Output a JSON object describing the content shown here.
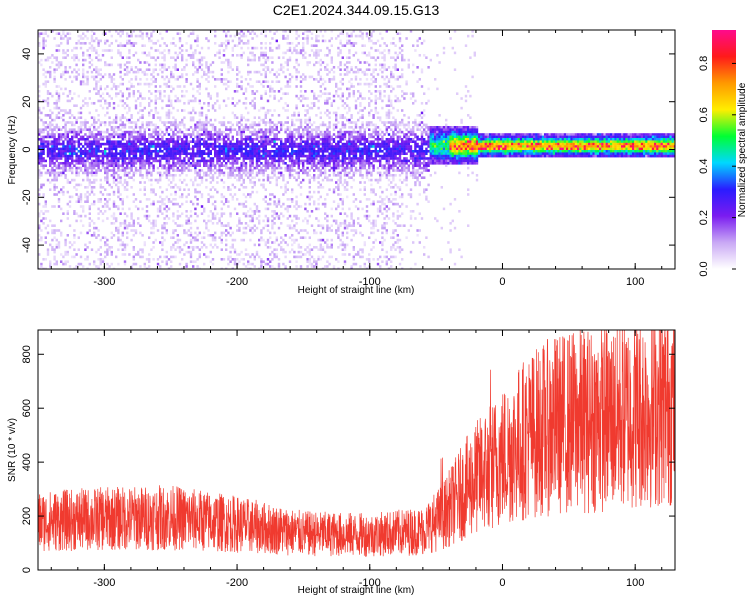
{
  "title": "C2E1.2024.344.09.15.G13",
  "colors": {
    "snr_line": "#f03a2f",
    "colormap": [
      "#ffffff",
      "#c9a8f5",
      "#7a1cf0",
      "#2a1cff",
      "#00d8ff",
      "#00ff33",
      "#ffee00",
      "#ff9900",
      "#ff1a1a",
      "#ff0a8c"
    ]
  },
  "chart_data": [
    {
      "type": "heatmap",
      "xlabel": "Height of straight line (km)",
      "ylabel": "Frequency (Hz)",
      "xlim": [
        -350,
        130
      ],
      "ylim": [
        -50,
        50
      ],
      "xticks": [
        -300,
        -200,
        -100,
        0,
        100
      ],
      "yticks": [
        -40,
        -20,
        0,
        20,
        40
      ],
      "colorbar": {
        "label": "Normalized spectral amplitude",
        "range": [
          0.0,
          0.93
        ],
        "ticks": [
          0.0,
          0.2,
          0.4,
          0.6,
          0.8
        ]
      }
    },
    {
      "type": "line",
      "xlabel": "Height of straight line (km)",
      "ylabel": "SNR (10 * v/v)",
      "xlim": [
        -350,
        130
      ],
      "ylim": [
        0,
        890
      ],
      "xticks": [
        -300,
        -200,
        -100,
        0,
        100
      ],
      "yticks": [
        0,
        200,
        400,
        600,
        800
      ],
      "series": [
        {
          "x": [
            -350,
            -300,
            -250,
            -200,
            -150,
            -100,
            -60,
            -45,
            -30,
            -20,
            -10,
            0,
            20,
            40,
            60,
            80,
            100,
            130
          ],
          "values": [
            180,
            190,
            195,
            170,
            135,
            130,
            145,
            200,
            290,
            340,
            380,
            420,
            500,
            540,
            555,
            565,
            585,
            620
          ]
        }
      ]
    }
  ]
}
